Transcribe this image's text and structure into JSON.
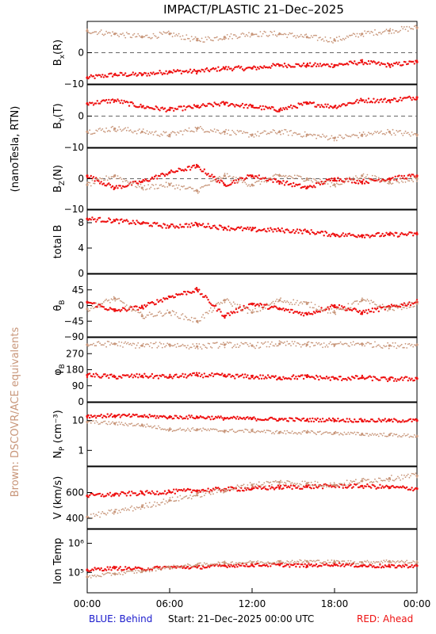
{
  "title": "IMPACT/PLASTIC   21–Dec–2025",
  "left_axis_label": "(nanoTesla, RTN)",
  "brown_label": "Brown: DSCOVR/ACE equivalents",
  "bottom": {
    "blue_label": "BLUE: Behind",
    "start_label": "Start: 21–Dec–2025 00:00 UTC",
    "red_label": "RED: Ahead"
  },
  "colors": {
    "red": "#ee1111",
    "brown": "#c8967a",
    "blue": "#1a1acc",
    "axis": "#000000",
    "zero_line": "#666666"
  },
  "chart_data": {
    "type": "scatter",
    "x_ticks": [
      "00:00",
      "06:00",
      "12:00",
      "18:00",
      "00:00"
    ],
    "x_range_hours": [
      0,
      24
    ],
    "panels": [
      {
        "id": "bx",
        "ylabel_main": "B",
        "ylabel_sub": "x",
        "ylabel_tail": "(R)",
        "yrange": [
          -10,
          10
        ],
        "ticks": [
          {
            "v": 0,
            "label": "0"
          },
          {
            "v": -10,
            "label": "−10"
          }
        ],
        "zero_line": true,
        "series": [
          {
            "color": "red",
            "x": [
              0,
              2,
              4,
              6,
              8,
              10,
              12,
              14,
              16,
              18,
              20,
              22,
              24
            ],
            "y": [
              -8,
              -7,
              -7,
              -6,
              -6,
              -5,
              -5,
              -4,
              -4,
              -4,
              -3,
              -4,
              -3
            ]
          },
          {
            "color": "brown",
            "x": [
              0,
              2,
              4,
              6,
              8,
              10,
              12,
              14,
              16,
              18,
              20,
              22,
              24
            ],
            "y": [
              7,
              6,
              5,
              6,
              4,
              5,
              6,
              6,
              5,
              4,
              6,
              7,
              8
            ]
          }
        ]
      },
      {
        "id": "by",
        "ylabel_main": "B",
        "ylabel_sub": "Y",
        "ylabel_tail": "(T)",
        "yrange": [
          -10,
          10
        ],
        "ticks": [
          {
            "v": 0,
            "label": "0"
          },
          {
            "v": -10,
            "label": "−10"
          }
        ],
        "zero_line": true,
        "series": [
          {
            "color": "red",
            "x": [
              0,
              2,
              4,
              6,
              8,
              10,
              12,
              14,
              16,
              18,
              20,
              22,
              24
            ],
            "y": [
              4,
              5,
              3,
              2,
              3,
              4,
              3,
              2,
              4,
              3,
              5,
              5,
              6
            ]
          },
          {
            "color": "brown",
            "x": [
              0,
              2,
              4,
              6,
              8,
              10,
              12,
              14,
              16,
              18,
              20,
              22,
              24
            ],
            "y": [
              -5,
              -4,
              -5,
              -6,
              -4,
              -5,
              -6,
              -5,
              -6,
              -7,
              -6,
              -5,
              -6
            ]
          }
        ]
      },
      {
        "id": "bz",
        "ylabel_main": "B",
        "ylabel_sub": "Z",
        "ylabel_tail": "(N)",
        "yrange": [
          -10,
          10
        ],
        "ticks": [
          {
            "v": 0,
            "label": "0"
          },
          {
            "v": -10,
            "label": "−10"
          }
        ],
        "zero_line": true,
        "series": [
          {
            "color": "red",
            "x": [
              0,
              2,
              4,
              6,
              8,
              10,
              12,
              14,
              16,
              18,
              20,
              22,
              24
            ],
            "y": [
              1,
              -3,
              -1,
              2,
              4,
              -2,
              1,
              -1,
              -3,
              0,
              -1,
              0,
              1
            ]
          },
          {
            "color": "brown",
            "x": [
              0,
              2,
              4,
              6,
              8,
              10,
              12,
              14,
              16,
              18,
              20,
              22,
              24
            ],
            "y": [
              -2,
              1,
              -3,
              -2,
              -4,
              1,
              -2,
              1,
              0,
              -2,
              1,
              -1,
              0
            ]
          }
        ]
      },
      {
        "id": "bt",
        "ylabel_main": "total B",
        "ylabel_sub": "",
        "ylabel_tail": "",
        "yrange": [
          0,
          10
        ],
        "ticks": [
          {
            "v": 8,
            "label": "8"
          },
          {
            "v": 4,
            "label": "4"
          },
          {
            "v": 0,
            "label": "0"
          }
        ],
        "zero_line": false,
        "series": [
          {
            "color": "red",
            "x": [
              0,
              2,
              4,
              6,
              8,
              10,
              12,
              14,
              16,
              18,
              20,
              22,
              24
            ],
            "y": [
              8.6,
              8.3,
              7.9,
              7.4,
              7.7,
              7.2,
              6.9,
              6.8,
              6.6,
              6.1,
              6.0,
              6.1,
              6.2
            ]
          }
        ]
      },
      {
        "id": "theta",
        "ylabel_main": "θ",
        "ylabel_sub": "B",
        "ylabel_tail": "",
        "yrange": [
          -90,
          90
        ],
        "ticks": [
          {
            "v": 45,
            "label": "45"
          },
          {
            "v": 0,
            "label": "0"
          },
          {
            "v": -45,
            "label": "−45"
          },
          {
            "v": -90,
            "label": "−90"
          }
        ],
        "zero_line": false,
        "series": [
          {
            "color": "red",
            "x": [
              0,
              2,
              4,
              6,
              8,
              10,
              12,
              14,
              16,
              18,
              20,
              22,
              24
            ],
            "y": [
              10,
              -15,
              -5,
              25,
              45,
              -30,
              5,
              -10,
              -25,
              0,
              -20,
              -5,
              10
            ]
          },
          {
            "color": "brown",
            "x": [
              0,
              2,
              4,
              6,
              8,
              10,
              12,
              14,
              16,
              18,
              20,
              22,
              24
            ],
            "y": [
              -10,
              20,
              -30,
              -20,
              -45,
              15,
              -20,
              15,
              5,
              -20,
              15,
              -10,
              5
            ]
          }
        ]
      },
      {
        "id": "phi",
        "ylabel_main": "φ",
        "ylabel_sub": "B",
        "ylabel_tail": "",
        "yrange": [
          0,
          360
        ],
        "ticks": [
          {
            "v": 270,
            "label": "270"
          },
          {
            "v": 180,
            "label": "180"
          },
          {
            "v": 90,
            "label": "90"
          },
          {
            "v": 0,
            "label": "0"
          }
        ],
        "zero_line": false,
        "series": [
          {
            "color": "red",
            "x": [
              0,
              2,
              4,
              6,
              8,
              10,
              12,
              14,
              16,
              18,
              20,
              22,
              24
            ],
            "y": [
              150,
              140,
              145,
              140,
              150,
              145,
              140,
              135,
              140,
              130,
              135,
              125,
              130
            ]
          },
          {
            "color": "brown",
            "x": [
              0,
              2,
              4,
              6,
              8,
              10,
              12,
              14,
              16,
              18,
              20,
              22,
              24
            ],
            "y": [
              320,
              325,
              315,
              320,
              310,
              320,
              315,
              325,
              320,
              320,
              325,
              315,
              320
            ]
          }
        ]
      },
      {
        "id": "np",
        "ylabel_main": "N",
        "ylabel_sub": "P",
        "ylabel_tail": " (cm⁻³)",
        "log": true,
        "yrange": [
          0.3,
          40
        ],
        "ticks": [
          {
            "v": 10,
            "label": "10"
          },
          {
            "v": 1,
            "label": "1"
          }
        ],
        "zero_line": false,
        "series": [
          {
            "color": "red",
            "x": [
              0,
              2,
              4,
              6,
              8,
              10,
              12,
              14,
              16,
              18,
              20,
              22,
              24
            ],
            "y": [
              14,
              14.5,
              14,
              13,
              13,
              12,
              11.5,
              11,
              10.5,
              10.5,
              10,
              10,
              10
            ]
          },
          {
            "color": "brown",
            "x": [
              0,
              2,
              4,
              6,
              8,
              10,
              12,
              14,
              16,
              18,
              20,
              22,
              24
            ],
            "y": [
              9,
              8,
              7,
              5,
              5,
              4.5,
              4.5,
              4,
              4,
              3.8,
              3.5,
              3.3,
              3
            ]
          }
        ]
      },
      {
        "id": "v",
        "ylabel_main": "V (km/s)",
        "ylabel_sub": "",
        "ylabel_tail": "",
        "yrange": [
          320,
          800
        ],
        "ticks": [
          {
            "v": 600,
            "label": "600"
          },
          {
            "v": 400,
            "label": "400"
          }
        ],
        "zero_line": false,
        "series": [
          {
            "color": "red",
            "x": [
              0,
              2,
              4,
              6,
              8,
              10,
              12,
              14,
              16,
              18,
              20,
              22,
              24
            ],
            "y": [
              575,
              585,
              595,
              605,
              615,
              625,
              630,
              640,
              645,
              650,
              650,
              640,
              630
            ]
          },
          {
            "color": "brown",
            "x": [
              0,
              2,
              4,
              6,
              8,
              10,
              12,
              14,
              16,
              18,
              20,
              22,
              24
            ],
            "y": [
              410,
              450,
              490,
              540,
              580,
              620,
              660,
              680,
              670,
              660,
              690,
              710,
              730
            ]
          }
        ]
      },
      {
        "id": "temp",
        "ylabel_main": "Ion Temp",
        "ylabel_sub": "",
        "ylabel_tail": "",
        "log": true,
        "yrange": [
          20000,
          3000000
        ],
        "ticks": [
          {
            "v": 1000000,
            "label": "10⁶"
          },
          {
            "v": 100000,
            "label": "10⁵"
          }
        ],
        "zero_line": false,
        "series": [
          {
            "color": "red",
            "x": [
              0,
              2,
              4,
              6,
              8,
              10,
              12,
              14,
              16,
              18,
              20,
              22,
              24
            ],
            "y": [
              120000,
              140000,
              130000,
              150000,
              150000,
              170000,
              180000,
              180000,
              170000,
              190000,
              170000,
              160000,
              170000
            ]
          },
          {
            "color": "brown",
            "x": [
              0,
              2,
              4,
              6,
              8,
              10,
              12,
              14,
              16,
              18,
              20,
              22,
              24
            ],
            "y": [
              70000,
              90000,
              110000,
              150000,
              180000,
              210000,
              220000,
              230000,
              240000,
              230000,
              220000,
              240000,
              220000
            ]
          }
        ]
      }
    ]
  }
}
